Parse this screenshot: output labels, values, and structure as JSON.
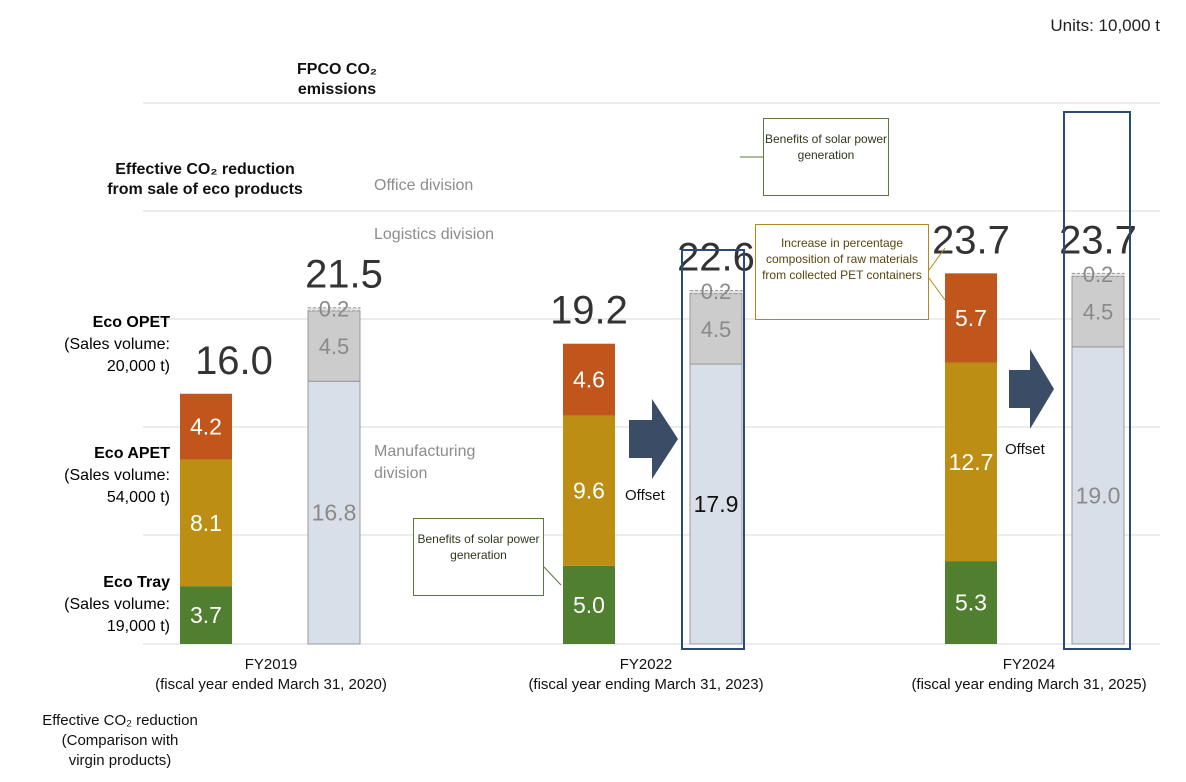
{
  "units_label": "Units: 10,000 t",
  "fpco_title": "FPCO CO₂ emissions",
  "effective_title": "Effective CO₂ reduction from sale of eco products",
  "legend": [
    {
      "name": "Eco OPET",
      "detail_1": "(Sales volume:",
      "detail_2": "20,000 t)",
      "color": "#b4531e"
    },
    {
      "name": "Eco APET",
      "detail_1": "(Sales volume:",
      "detail_2": "54,000 t)",
      "color": "#b08a20"
    },
    {
      "name": "Eco Tray",
      "detail_1": "(Sales volume:",
      "detail_2": "19,000 t)",
      "color": "#4e7a2e"
    }
  ],
  "division_labels": {
    "office": "Office  division",
    "logistics": "Logistics division",
    "manufacturing_1": "Manufacturing",
    "manufacturing_2": "division"
  },
  "fy_labels": [
    {
      "line1": "FY2019",
      "line2": "(fiscal year ended March 31, 2020)"
    },
    {
      "line1": "FY2022",
      "line2": "(fiscal year ending March 31, 2023)"
    },
    {
      "line1": "FY2024",
      "line2": "(fiscal year ending March 31, 2025)"
    }
  ],
  "bottom_note": {
    "line1": "Effective  CO₂ reduction",
    "line2": "(Comparison  with",
    "line3": "virgin  products)"
  },
  "callouts": {
    "solar_1": "Benefits of solar power generation",
    "solar_2": "Benefits of solar power generation",
    "raw": "Increase in percentage composition of raw materials from collected PET  containers"
  },
  "offset_label": "Offset",
  "colors": {
    "opet": "#c0561b",
    "apet": "#bd8e14",
    "tray": "#4f7f2f",
    "manufacturing": "#d9dfe8",
    "logistics": "#cccccc",
    "office": "#e2e2e2",
    "frame": "#2b4a7a",
    "arrow": "#3a4c66",
    "grid": "#d9d9d9"
  },
  "chart_data": {
    "type": "bar",
    "stacked": true,
    "units": "10,000 t",
    "groups": [
      {
        "period": "FY2019",
        "bars": [
          {
            "name": "Effective CO₂ reduction",
            "total": 16.0,
            "segments": [
              {
                "label": "Eco Tray",
                "value": 3.7
              },
              {
                "label": "Eco APET",
                "value": 8.1
              },
              {
                "label": "Eco OPET",
                "value": 4.2
              }
            ]
          },
          {
            "name": "FPCO CO₂ emissions",
            "total": 21.5,
            "segments": [
              {
                "label": "Manufacturing division",
                "value": 16.8
              },
              {
                "label": "Logistics division",
                "value": 4.5
              },
              {
                "label": "Office division",
                "value": 0.2
              }
            ]
          }
        ]
      },
      {
        "period": "FY2022",
        "bars": [
          {
            "name": "Effective CO₂ reduction",
            "total": 19.2,
            "segments": [
              {
                "label": "Eco Tray",
                "value": 5.0
              },
              {
                "label": "Eco APET",
                "value": 9.6
              },
              {
                "label": "Eco OPET",
                "value": 4.6
              }
            ]
          },
          {
            "name": "FPCO CO₂ emissions",
            "total": 22.6,
            "segments": [
              {
                "label": "Manufacturing division",
                "value": 17.9
              },
              {
                "label": "Logistics division",
                "value": 4.5
              },
              {
                "label": "Office division",
                "value": 0.2
              }
            ]
          }
        ]
      },
      {
        "period": "FY2024",
        "bars": [
          {
            "name": "Effective CO₂ reduction",
            "total": 23.7,
            "segments": [
              {
                "label": "Eco Tray",
                "value": 5.3
              },
              {
                "label": "Eco APET",
                "value": 12.7
              },
              {
                "label": "Eco OPET",
                "value": 5.7
              }
            ]
          },
          {
            "name": "FPCO CO₂ emissions",
            "total": 23.7,
            "segments": [
              {
                "label": "Manufacturing division",
                "value": 19.0
              },
              {
                "label": "Logistics division",
                "value": 4.5
              },
              {
                "label": "Office division",
                "value": 0.2
              }
            ]
          }
        ]
      }
    ],
    "grid": true
  }
}
